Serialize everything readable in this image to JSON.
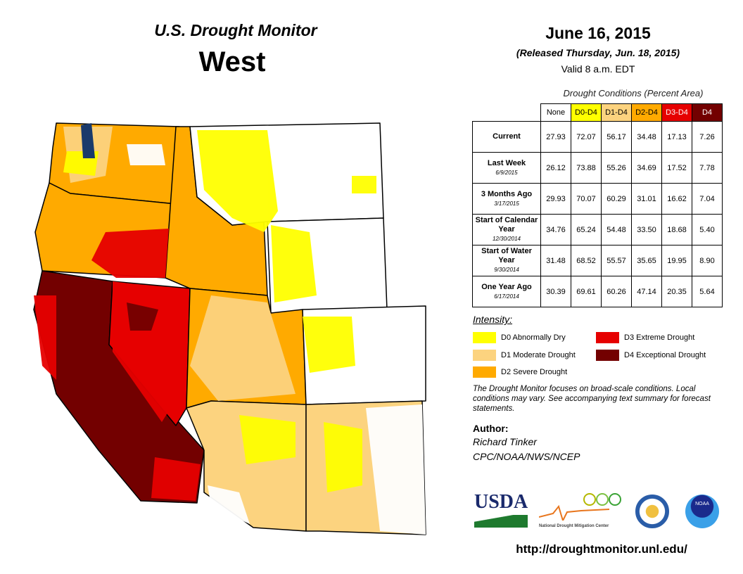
{
  "header": {
    "title": "U.S. Drought Monitor",
    "region": "West",
    "date": "June 16, 2015",
    "released": "(Released Thursday, Jun. 18, 2015)",
    "valid": "Valid  8 a.m. EDT"
  },
  "table": {
    "caption": "Drought Conditions (Percent Area)",
    "columns": [
      "None",
      "D0-D4",
      "D1-D4",
      "D2-D4",
      "D3-D4",
      "D4"
    ],
    "column_colors": [
      "#ffffff",
      "#ffff00",
      "#fcd37f",
      "#ffaa00",
      "#e60000",
      "#730000"
    ],
    "rows": [
      {
        "label": "Current",
        "date": "",
        "values": [
          "27.93",
          "72.07",
          "56.17",
          "34.48",
          "17.13",
          "7.26"
        ]
      },
      {
        "label": "Last Week",
        "date": "6/9/2015",
        "values": [
          "26.12",
          "73.88",
          "55.26",
          "34.69",
          "17.52",
          "7.78"
        ]
      },
      {
        "label": "3 Months Ago",
        "date": "3/17/2015",
        "values": [
          "29.93",
          "70.07",
          "60.29",
          "31.01",
          "16.62",
          "7.04"
        ]
      },
      {
        "label": "Start of Calendar Year",
        "date": "12/30/2014",
        "values": [
          "34.76",
          "65.24",
          "54.48",
          "33.50",
          "18.68",
          "5.40"
        ]
      },
      {
        "label": "Start of Water Year",
        "date": "9/30/2014",
        "values": [
          "31.48",
          "68.52",
          "55.57",
          "35.65",
          "19.95",
          "8.90"
        ]
      },
      {
        "label": "One Year Ago",
        "date": "6/17/2014",
        "values": [
          "30.39",
          "69.61",
          "60.26",
          "47.14",
          "20.35",
          "5.64"
        ]
      }
    ]
  },
  "legend": {
    "title": "Intensity:",
    "items": [
      {
        "label": "D0 Abnormally Dry",
        "color": "#ffff00"
      },
      {
        "label": "D1 Moderate Drought",
        "color": "#fcd37f"
      },
      {
        "label": "D2 Severe Drought",
        "color": "#ffaa00"
      },
      {
        "label": "D3 Extreme Drought",
        "color": "#e60000"
      },
      {
        "label": "D4 Exceptional Drought",
        "color": "#730000"
      }
    ]
  },
  "note": "The Drought Monitor focuses on broad-scale conditions. Local conditions may vary. See accompanying text summary for forecast statements.",
  "author": {
    "label": "Author:",
    "name": "Richard Tinker",
    "org": "CPC/NOAA/NWS/NCEP"
  },
  "logos": {
    "usda": "USDA",
    "ndmc": "National Drought Mitigation Center",
    "noaa": "NOAA"
  },
  "url": "http://droughtmonitor.unl.edu/"
}
